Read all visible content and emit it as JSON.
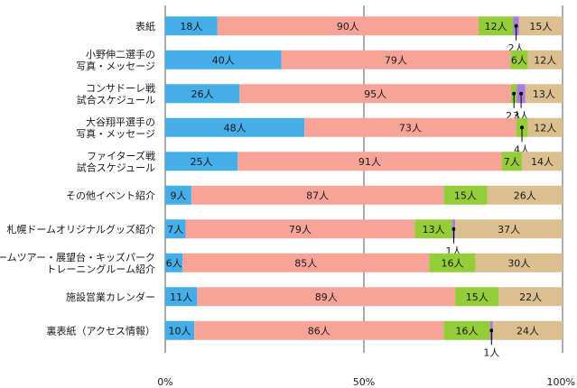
{
  "chart_data": {
    "type": "bar",
    "orientation": "horizontal",
    "stacked": true,
    "normalized": true,
    "categories": [
      [
        "表紙"
      ],
      [
        "小野伸二選手の",
        "写真・メッセージ"
      ],
      [
        "コンサドーレ戦",
        "試合スケジュール"
      ],
      [
        "大谷翔平選手の",
        "写真・メッセージ"
      ],
      [
        "ファイターズ戦",
        "試合スケジュール"
      ],
      [
        "その他イベント紹介"
      ],
      [
        "札幌ドームオリジナルグッズ紹介"
      ],
      [
        "ドームツアー・展望台・キッズパーク",
        "トレーニングルーム紹介"
      ],
      [
        "施設営業カレンダー"
      ],
      [
        "裏表紙（アクセス情報）"
      ]
    ],
    "series": [
      {
        "color": "#45ade8",
        "values": [
          18,
          40,
          26,
          48,
          25,
          9,
          7,
          6,
          11,
          10
        ]
      },
      {
        "color": "#f8a397",
        "values": [
          90,
          79,
          95,
          73,
          91,
          87,
          79,
          85,
          89,
          86
        ]
      },
      {
        "color": "#94cc3a",
        "values": [
          12,
          6,
          2,
          4,
          7,
          15,
          13,
          16,
          15,
          16
        ]
      },
      {
        "color": "#a97ee0",
        "values": [
          2,
          0,
          3,
          0,
          0,
          0,
          1,
          0,
          0,
          1
        ]
      },
      {
        "color": "#dcbf8f",
        "values": [
          15,
          12,
          13,
          12,
          14,
          26,
          37,
          30,
          22,
          24
        ]
      }
    ],
    "value_unit": "人",
    "xticks": [
      "0%",
      "50%",
      "100%"
    ],
    "xlim": [
      0,
      100
    ],
    "grid": "vertical at 50%",
    "legend": "none"
  }
}
